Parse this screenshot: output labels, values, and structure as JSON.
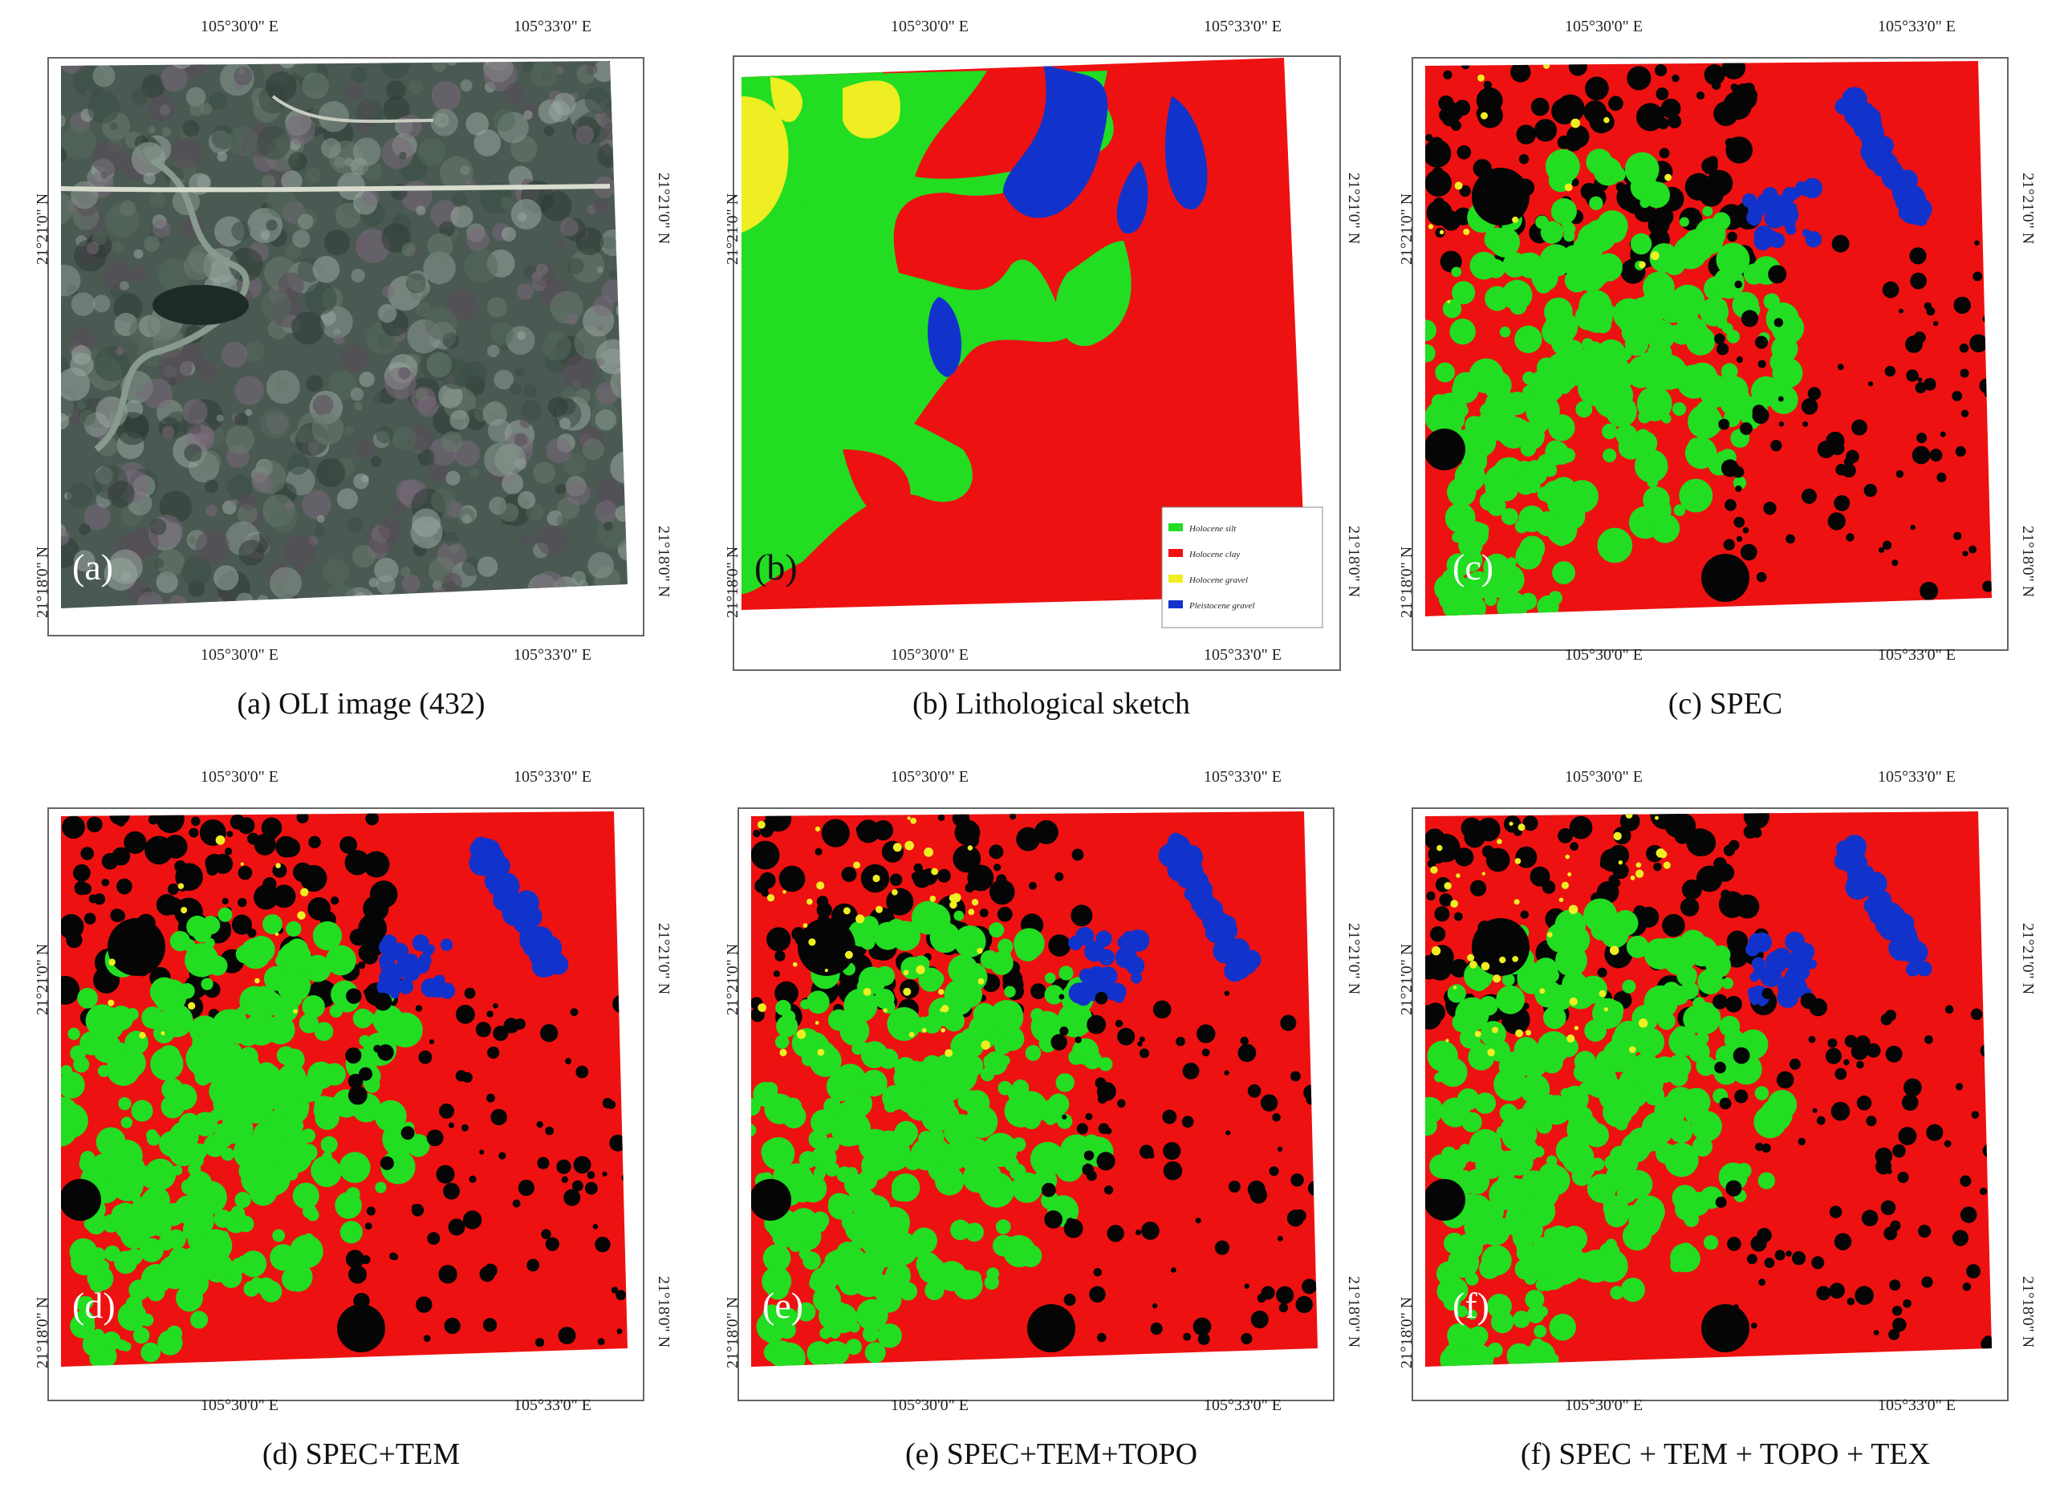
{
  "lon_labels": {
    "left": "105°30'0\" E",
    "right": "105°33'0\" E"
  },
  "lat_labels": {
    "upper": "21°21'0\" N",
    "lower": "21°18'0\" N"
  },
  "panels": [
    {
      "label": "(a)",
      "caption": "(a) OLI image (432)"
    },
    {
      "label": "(b)",
      "caption": "(b) Lithological sketch"
    },
    {
      "label": "(c)",
      "caption": "(c) SPEC"
    },
    {
      "label": "(d)",
      "caption": "(d) SPEC+TEM"
    },
    {
      "label": "(e)",
      "caption": "(e) SPEC+TEM+TOPO"
    },
    {
      "label": "(f)",
      "caption": "(f) SPEC + TEM + TOPO + TEX"
    }
  ],
  "legend": {
    "items": [
      {
        "label": "Holocene silt",
        "color": "#22dd22"
      },
      {
        "label": "Holocene clay",
        "color": "#ee1111"
      },
      {
        "label": "Holocene gravel",
        "color": "#eeee22"
      },
      {
        "label": "Pleistocene gravel",
        "color": "#1133cc"
      }
    ]
  },
  "colors": {
    "silt": "#22dd22",
    "clay": "#ee1111",
    "gravel": "#eeee22",
    "pleistocene": "#1133cc",
    "nodata": "#050505"
  }
}
